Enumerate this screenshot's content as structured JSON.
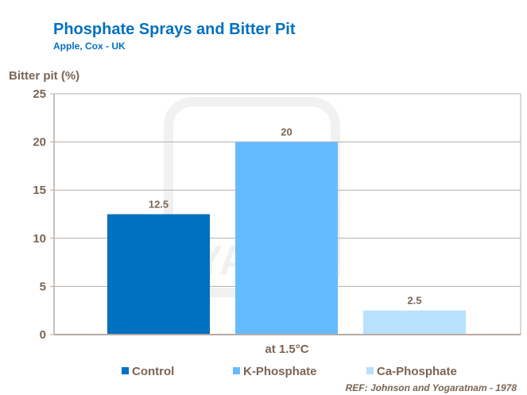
{
  "chart_data": {
    "type": "bar",
    "title": "Phosphate Sprays and Bitter Pit",
    "subtitle": "Apple, Cox - UK",
    "ylabel": "Bitter pit (%)",
    "xlabel": "at 1.5°C",
    "ylim": [
      0,
      25
    ],
    "yticks": [
      0,
      5,
      10,
      15,
      20,
      25
    ],
    "grid": true,
    "legend_placement": "bottom",
    "series": [
      {
        "name": "Control",
        "values": [
          12.5
        ],
        "color": "#0070c0",
        "label": "12.5"
      },
      {
        "name": "K-Phosphate",
        "values": [
          20
        ],
        "color": "#66bbff",
        "label": "20"
      },
      {
        "name": "Ca-Phosphate",
        "values": [
          2.5
        ],
        "color": "#b9e0ff",
        "label": "2.5"
      }
    ],
    "categories": [
      "at 1.5°C"
    ],
    "reference": "REF: Johnson and Yogaratnam - 1978",
    "watermark": "YARA"
  }
}
